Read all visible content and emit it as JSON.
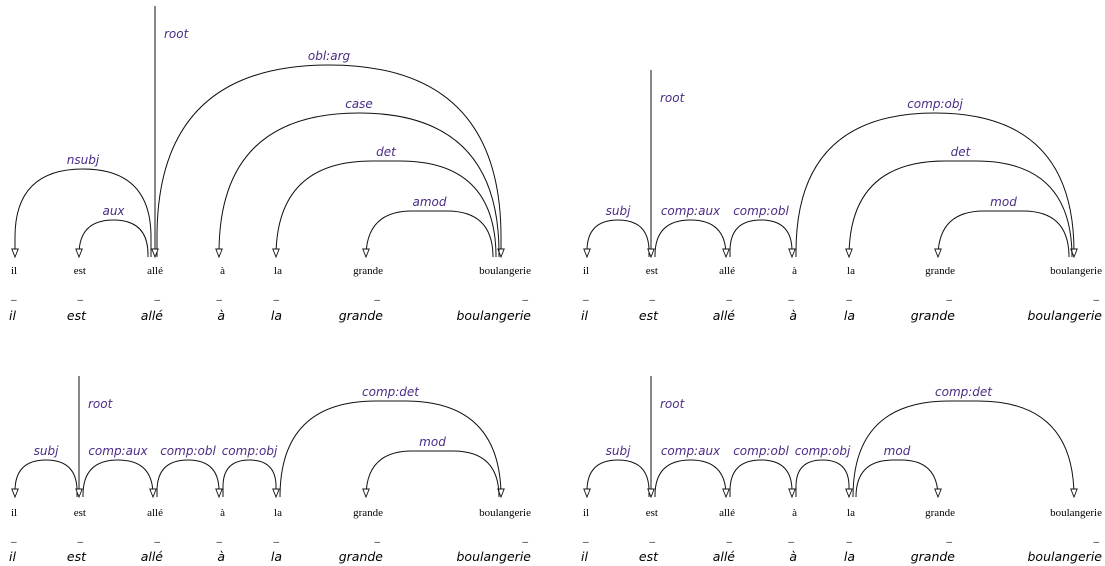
{
  "diagrams": [
    {
      "words": [
        "il",
        "est",
        "allé",
        "à",
        "la",
        "grande",
        "boulangerie"
      ],
      "glosses": [
        "il",
        "est",
        "allé",
        "à",
        "la",
        "grande",
        "boulangerie"
      ],
      "dashes": [
        "_",
        "_",
        "_",
        "_",
        "_",
        "_",
        "_"
      ],
      "root": {
        "word": 2,
        "label": "root"
      },
      "arcs": [
        {
          "from": 2,
          "to": 0,
          "label": "nsubj"
        },
        {
          "from": 2,
          "to": 1,
          "label": "aux"
        },
        {
          "from": 2,
          "to": 6,
          "label": "obl:arg"
        },
        {
          "from": 6,
          "to": 3,
          "label": "case"
        },
        {
          "from": 6,
          "to": 4,
          "label": "det"
        },
        {
          "from": 6,
          "to": 5,
          "label": "amod"
        }
      ]
    },
    {
      "words": [
        "il",
        "est",
        "allé",
        "à",
        "la",
        "grande",
        "boulangerie"
      ],
      "glosses": [
        "il",
        "est",
        "allé",
        "à",
        "la",
        "grande",
        "boulangerie"
      ],
      "dashes": [
        "_",
        "_",
        "_",
        "_",
        "_",
        "_",
        "_"
      ],
      "root": {
        "word": 1,
        "label": "root"
      },
      "arcs": [
        {
          "from": 1,
          "to": 0,
          "label": "subj"
        },
        {
          "from": 1,
          "to": 2,
          "label": "comp:aux"
        },
        {
          "from": 2,
          "to": 3,
          "label": "comp:obl"
        },
        {
          "from": 3,
          "to": 6,
          "label": "comp:obj"
        },
        {
          "from": 6,
          "to": 4,
          "label": "det"
        },
        {
          "from": 6,
          "to": 5,
          "label": "mod"
        }
      ]
    },
    {
      "words": [
        "il",
        "est",
        "allé",
        "à",
        "la",
        "grande",
        "boulangerie"
      ],
      "glosses": [
        "il",
        "est",
        "allé",
        "à",
        "la",
        "grande",
        "boulangerie"
      ],
      "dashes": [
        "_",
        "_",
        "_",
        "_",
        "_",
        "_",
        "_"
      ],
      "root": {
        "word": 1,
        "label": "root"
      },
      "arcs": [
        {
          "from": 1,
          "to": 0,
          "label": "subj"
        },
        {
          "from": 1,
          "to": 2,
          "label": "comp:aux"
        },
        {
          "from": 2,
          "to": 3,
          "label": "comp:obl"
        },
        {
          "from": 3,
          "to": 4,
          "label": "comp:obj"
        },
        {
          "from": 4,
          "to": 6,
          "label": "comp:det"
        },
        {
          "from": 6,
          "to": 5,
          "label": "mod"
        }
      ]
    },
    {
      "words": [
        "il",
        "est",
        "allé",
        "à",
        "la",
        "grande",
        "boulangerie"
      ],
      "glosses": [
        "il",
        "est",
        "allé",
        "à",
        "la",
        "grande",
        "boulangerie"
      ],
      "dashes": [
        "_",
        "_",
        "_",
        "_",
        "_",
        "_",
        "_"
      ],
      "root": {
        "word": 1,
        "label": "root"
      },
      "arcs": [
        {
          "from": 1,
          "to": 0,
          "label": "subj"
        },
        {
          "from": 1,
          "to": 2,
          "label": "comp:aux"
        },
        {
          "from": 2,
          "to": 3,
          "label": "comp:obl"
        },
        {
          "from": 3,
          "to": 4,
          "label": "comp:obj"
        },
        {
          "from": 4,
          "to": 6,
          "label": "comp:det"
        },
        {
          "from": 4,
          "to": 5,
          "label": "mod"
        }
      ]
    }
  ]
}
